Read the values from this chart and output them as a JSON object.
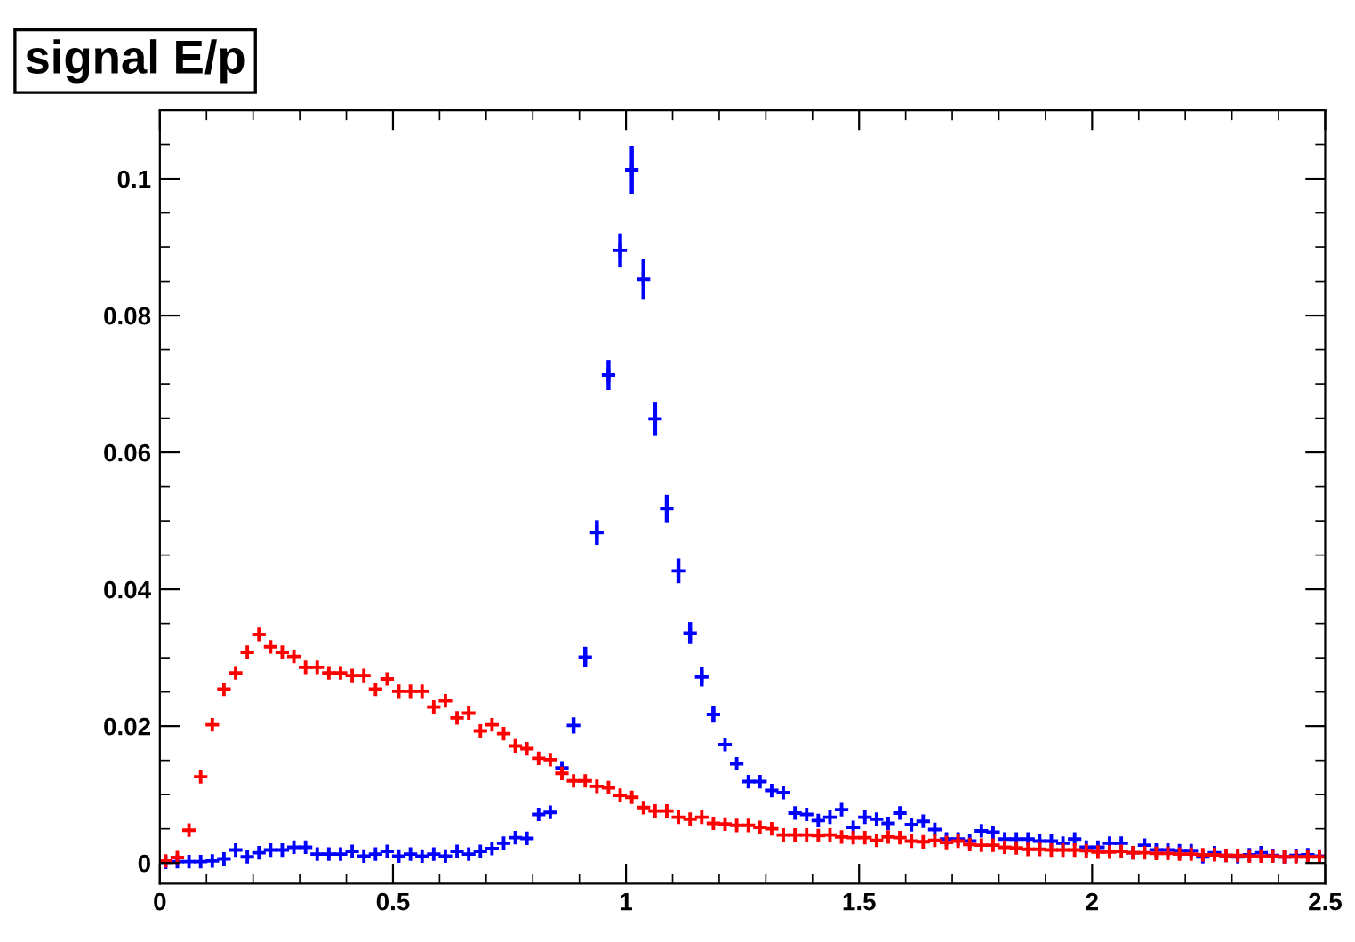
{
  "chart_data": {
    "type": "scatter",
    "title": "signal E/p",
    "x": [
      0.0125,
      0.0375,
      0.0625,
      0.0875,
      0.1125,
      0.1375,
      0.1625,
      0.1875,
      0.2125,
      0.2375,
      0.2625,
      0.2875,
      0.3125,
      0.3375,
      0.3625,
      0.3875,
      0.4125,
      0.4375,
      0.4625,
      0.4875,
      0.5125,
      0.5375,
      0.5625,
      0.5875,
      0.6125,
      0.6375,
      0.6625,
      0.6875,
      0.7125,
      0.7375,
      0.7625,
      0.7875,
      0.8125,
      0.8375,
      0.8625,
      0.8875,
      0.9125,
      0.9375,
      0.9625,
      0.9875,
      1.0125,
      1.0375,
      1.0625,
      1.0875,
      1.1125,
      1.1375,
      1.1625,
      1.1875,
      1.2125,
      1.2375,
      1.2625,
      1.2875,
      1.3125,
      1.3375,
      1.3625,
      1.3875,
      1.4125,
      1.4375,
      1.4625,
      1.4875,
      1.5125,
      1.5375,
      1.5625,
      1.5875,
      1.6125,
      1.6375,
      1.6625,
      1.6875,
      1.7125,
      1.7375,
      1.7625,
      1.7875,
      1.8125,
      1.8375,
      1.8625,
      1.8875,
      1.9125,
      1.9375,
      1.9625,
      1.9875,
      2.0125,
      2.0375,
      2.0625,
      2.0875,
      2.1125,
      2.1375,
      2.1625,
      2.1875,
      2.2125,
      2.2375,
      2.2625,
      2.2875,
      2.3125,
      2.3375,
      2.3625,
      2.3875,
      2.4125,
      2.4375,
      2.4625,
      2.4875
    ],
    "series": [
      {
        "color": "#0000ff",
        "values": [
          0.0001,
          0.0002,
          0.0002,
          0.0002,
          0.0003,
          0.0006,
          0.0019,
          0.0009,
          0.0015,
          0.0019,
          0.0019,
          0.0023,
          0.0023,
          0.0013,
          0.0013,
          0.0013,
          0.0017,
          0.001,
          0.0013,
          0.0017,
          0.001,
          0.0013,
          0.001,
          0.0013,
          0.001,
          0.0017,
          0.0013,
          0.0017,
          0.0021,
          0.0029,
          0.0037,
          0.0036,
          0.0071,
          0.0074,
          0.0139,
          0.0201,
          0.0301,
          0.0483,
          0.0713,
          0.0895,
          0.1013,
          0.0853,
          0.0649,
          0.0518,
          0.0427,
          0.0336,
          0.0272,
          0.0217,
          0.0173,
          0.0145,
          0.0119,
          0.0119,
          0.0106,
          0.0103,
          0.0073,
          0.0071,
          0.0062,
          0.0067,
          0.0078,
          0.0052,
          0.0067,
          0.0064,
          0.0058,
          0.0073,
          0.0056,
          0.0061,
          0.0049,
          0.0035,
          0.0035,
          0.0032,
          0.0047,
          0.0045,
          0.0035,
          0.0035,
          0.0035,
          0.0032,
          0.0032,
          0.0029,
          0.0035,
          0.0023,
          0.0023,
          0.0029,
          0.0029,
          0.0015,
          0.0026,
          0.0019,
          0.0019,
          0.0018,
          0.0018,
          0.0009,
          0.0015,
          0.0011,
          0.0009,
          0.0012,
          0.0015,
          0.0011,
          0.0009,
          0.0011,
          0.0012,
          0.001
        ],
        "errors": [
          null,
          null,
          null,
          null,
          null,
          null,
          null,
          null,
          null,
          null,
          null,
          null,
          null,
          null,
          null,
          null,
          null,
          null,
          null,
          null,
          null,
          null,
          null,
          null,
          null,
          null,
          null,
          null,
          null,
          null,
          null,
          null,
          null,
          null,
          null,
          0.0012,
          0.0015,
          0.0018,
          0.0022,
          0.0025,
          0.0035,
          0.003,
          0.0025,
          0.002,
          0.0018,
          0.0016,
          0.0014,
          0.0012,
          null,
          null,
          null,
          null,
          null,
          null,
          null,
          null,
          null,
          null,
          null,
          null,
          null,
          null,
          null,
          null,
          null,
          null,
          null,
          null,
          null,
          null,
          null,
          null,
          null,
          null,
          null,
          null,
          null,
          null,
          null,
          null,
          null,
          null,
          null,
          null,
          null,
          null,
          null,
          null,
          null,
          null,
          null,
          null,
          null,
          null,
          null,
          null,
          null,
          null,
          null,
          null
        ]
      },
      {
        "color": "#ff0000",
        "values": [
          0.0003,
          0.0008,
          0.0048,
          0.0126,
          0.0202,
          0.0254,
          0.0278,
          0.0308,
          0.0334,
          0.0316,
          0.0308,
          0.0302,
          0.0286,
          0.0286,
          0.0278,
          0.0278,
          0.0274,
          0.0274,
          0.0254,
          0.0269,
          0.0251,
          0.0251,
          0.0251,
          0.0228,
          0.0237,
          0.0212,
          0.0219,
          0.0193,
          0.0202,
          0.0189,
          0.0171,
          0.0167,
          0.0153,
          0.0151,
          0.0131,
          0.012,
          0.012,
          0.0112,
          0.011,
          0.0099,
          0.0096,
          0.0081,
          0.0076,
          0.0076,
          0.0067,
          0.0064,
          0.0067,
          0.0058,
          0.0057,
          0.0055,
          0.0055,
          0.0052,
          0.005,
          0.0041,
          0.0041,
          0.0041,
          0.004,
          0.0041,
          0.0038,
          0.0037,
          0.0037,
          0.0033,
          0.0038,
          0.0037,
          0.0032,
          0.0031,
          0.0033,
          0.003,
          0.0032,
          0.0027,
          0.0026,
          0.0026,
          0.0023,
          0.0022,
          0.002,
          0.002,
          0.0019,
          0.0019,
          0.0019,
          0.0018,
          0.0016,
          0.0016,
          0.0017,
          0.0015,
          0.0015,
          0.0014,
          0.0014,
          0.0013,
          0.0013,
          0.0012,
          0.0012,
          0.0011,
          0.0011,
          0.001,
          0.001,
          0.001,
          0.0009,
          0.0009,
          0.0009,
          0.0009
        ]
      }
    ],
    "xlim": [
      0,
      2.5
    ],
    "xticks": [
      0,
      0.5,
      1,
      1.5,
      2,
      2.5
    ],
    "ylim": [
      -0.003,
      0.11
    ],
    "yticks": [
      0,
      0.02,
      0.04,
      0.06,
      0.08,
      0.1
    ],
    "marker": "cross",
    "grid": false
  }
}
